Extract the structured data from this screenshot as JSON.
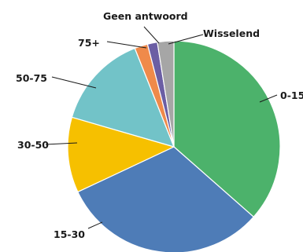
{
  "chart_data": {
    "type": "pie",
    "title": "",
    "start_angle_deg": 0,
    "direction": "clockwise",
    "slices": [
      {
        "label": "0-15",
        "value": 36.5,
        "color": "#4cb26b"
      },
      {
        "label": "15-30",
        "value": 31.5,
        "color": "#4e7cb7"
      },
      {
        "label": "30-50",
        "value": 11.5,
        "color": "#f6c000"
      },
      {
        "label": "50-75",
        "value": 14.5,
        "color": "#72c3c8"
      },
      {
        "label": "75+",
        "value": 2.0,
        "color": "#ef8a4a"
      },
      {
        "label": "Geen antwoord",
        "value": 1.5,
        "color": "#6b5ea4"
      },
      {
        "label": "Wisselend",
        "value": 2.5,
        "color": "#a6a6a6"
      }
    ]
  }
}
